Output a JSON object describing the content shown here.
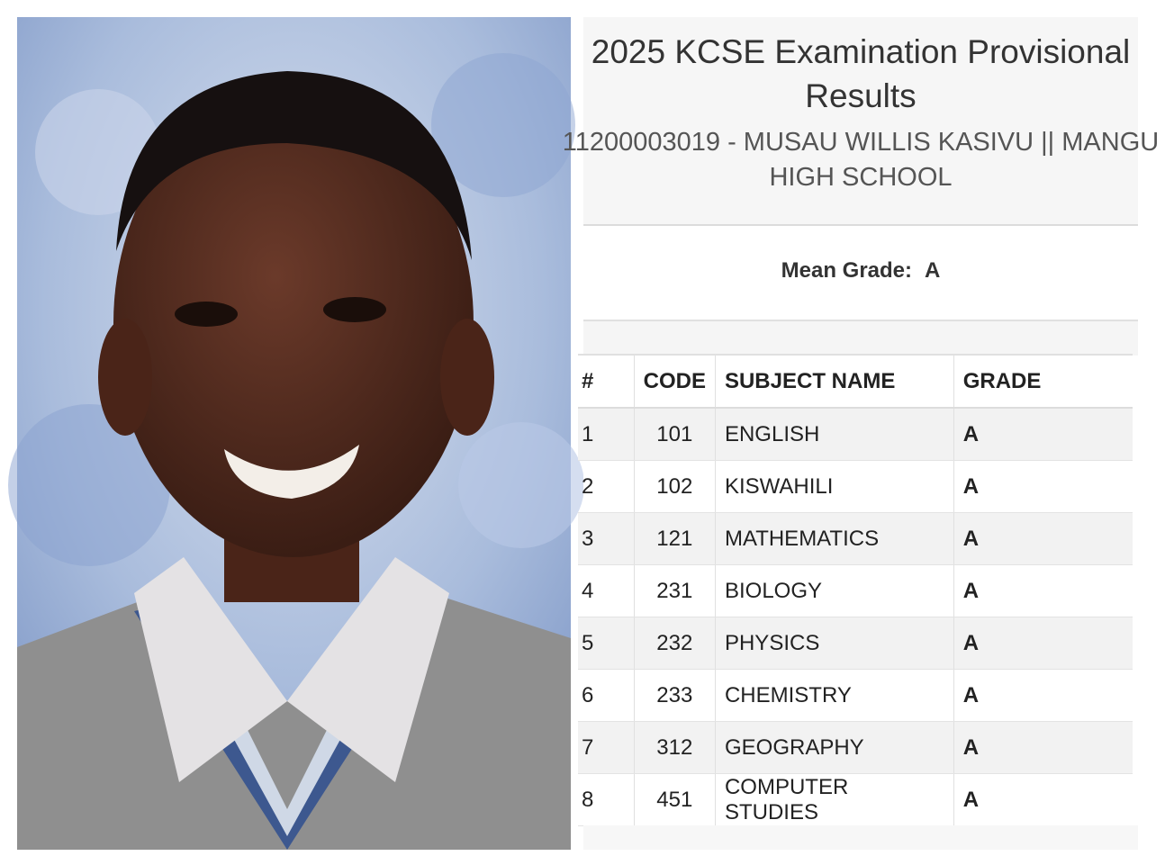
{
  "colors": {
    "header_bg": "#f6f6f6",
    "stripe": "#f2f2f2",
    "text": "#333333",
    "photo_bg": "#9fb3d6",
    "sweater": "#8e8e8e",
    "stripe_blue": "#2f4f8f"
  },
  "photo": {
    "subject": "student-portrait"
  },
  "results": {
    "title": "2025 KCSE Examination Provisional Results",
    "candidate": "11200003019 - MUSAU WILLIS KASIVU || MANGU HIGH SCHOOL",
    "mean_grade_label": "Mean Grade:",
    "mean_grade_value": "A",
    "table": {
      "headers": [
        "#",
        "CODE",
        "SUBJECT NAME",
        "GRADE"
      ],
      "rows": [
        {
          "n": "1",
          "code": "101",
          "subject": "ENGLISH",
          "grade": "A"
        },
        {
          "n": "2",
          "code": "102",
          "subject": "KISWAHILI",
          "grade": "A"
        },
        {
          "n": "3",
          "code": "121",
          "subject": "MATHEMATICS",
          "grade": "A"
        },
        {
          "n": "4",
          "code": "231",
          "subject": "BIOLOGY",
          "grade": "A"
        },
        {
          "n": "5",
          "code": "232",
          "subject": "PHYSICS",
          "grade": "A"
        },
        {
          "n": "6",
          "code": "233",
          "subject": "CHEMISTRY",
          "grade": "A"
        },
        {
          "n": "7",
          "code": "312",
          "subject": "GEOGRAPHY",
          "grade": "A"
        },
        {
          "n": "8",
          "code": "451",
          "subject": "COMPUTER STUDIES",
          "grade": "A"
        }
      ]
    }
  }
}
